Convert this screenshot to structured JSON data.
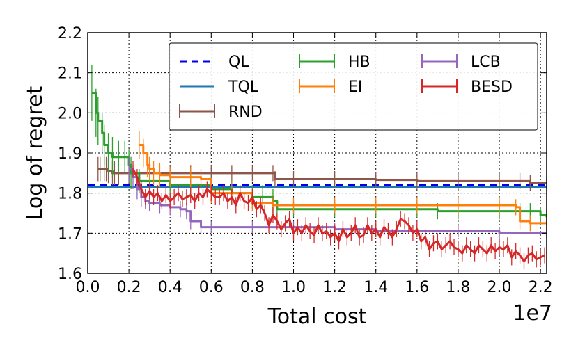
{
  "chart_data": {
    "type": "line",
    "title": "",
    "xlabel": "Total cost",
    "ylabel": "Log of regret",
    "x_offset_label": "1e7",
    "xlim": [
      0,
      2.23
    ],
    "ylim": [
      1.6,
      2.2
    ],
    "xticks": [
      "0.0",
      "0.2",
      "0.4",
      "0.6",
      "0.8",
      "1.0",
      "1.2",
      "1.4",
      "1.6",
      "1.8",
      "2.0",
      "2.2"
    ],
    "yticks": [
      "1.6",
      "1.7",
      "1.8",
      "1.9",
      "2.0",
      "2.1",
      "2.2"
    ],
    "grid": true,
    "legend_position": "top-right",
    "series": [
      {
        "name": "QL",
        "color": "#0000ee",
        "style": "dashed",
        "x": [
          0,
          2.23
        ],
        "y": [
          1.82,
          1.82
        ]
      },
      {
        "name": "TQL",
        "color": "#1f77b4",
        "style": "solid",
        "x": [
          0,
          2.23
        ],
        "y": [
          1.815,
          1.815
        ]
      },
      {
        "name": "RND",
        "color": "#8c564b",
        "style": "solid",
        "x": [
          0.05,
          0.06,
          0.08,
          0.09,
          0.1,
          0.12,
          0.13,
          0.15,
          0.2,
          0.3,
          0.4,
          0.5,
          0.6,
          0.7,
          0.8,
          0.9,
          0.91,
          1.0,
          1.2,
          1.4,
          1.6,
          1.8,
          2.0,
          2.1,
          2.15,
          2.23
        ],
        "y": [
          1.86,
          1.86,
          1.86,
          1.86,
          1.855,
          1.85,
          1.85,
          1.85,
          1.85,
          1.85,
          1.85,
          1.85,
          1.85,
          1.85,
          1.85,
          1.85,
          1.835,
          1.835,
          1.835,
          1.833,
          1.83,
          1.83,
          1.83,
          1.83,
          1.825,
          1.825
        ],
        "err": [
          0.03,
          0.03,
          0.03,
          0.03,
          0.03,
          0.03,
          0.03,
          0.03,
          0.025,
          0.025,
          0.02,
          0.02,
          0.02,
          0.02,
          0.02,
          0.02,
          0.02,
          0.02,
          0.02,
          0.02,
          0.02,
          0.02,
          0.02,
          0.02,
          0.02,
          0.02
        ]
      },
      {
        "name": "HB",
        "color": "#2ca02c",
        "style": "solid",
        "x": [
          0.02,
          0.04,
          0.05,
          0.07,
          0.08,
          0.1,
          0.12,
          0.15,
          0.18,
          0.2,
          0.21,
          0.25,
          0.3,
          0.4,
          0.5,
          0.6,
          0.7,
          0.8,
          0.85,
          0.9,
          0.92,
          1.0,
          1.2,
          1.4,
          1.6,
          1.7,
          1.8,
          2.0,
          2.1,
          2.15,
          2.2,
          2.23
        ],
        "y": [
          2.05,
          2.0,
          1.98,
          1.95,
          1.92,
          1.9,
          1.89,
          1.89,
          1.89,
          1.87,
          1.85,
          1.83,
          1.83,
          1.82,
          1.82,
          1.81,
          1.8,
          1.79,
          1.79,
          1.78,
          1.76,
          1.76,
          1.76,
          1.76,
          1.76,
          1.755,
          1.755,
          1.755,
          1.755,
          1.755,
          1.745,
          1.74
        ],
        "err": [
          0.07,
          0.06,
          0.06,
          0.05,
          0.05,
          0.05,
          0.05,
          0.04,
          0.04,
          0.04,
          0.04,
          0.03,
          0.03,
          0.03,
          0.03,
          0.03,
          0.03,
          0.03,
          0.03,
          0.03,
          0.02,
          0.02,
          0.02,
          0.02,
          0.02,
          0.02,
          0.02,
          0.02,
          0.02,
          0.02,
          0.02,
          0.02
        ]
      },
      {
        "name": "EI",
        "color": "#ff7f0e",
        "style": "solid",
        "x": [
          0.25,
          0.27,
          0.29,
          0.3,
          0.32,
          0.35,
          0.4,
          0.5,
          0.55,
          0.6,
          0.7,
          0.8,
          0.9,
          1.0,
          1.2,
          1.4,
          1.6,
          1.8,
          2.0,
          2.08,
          2.1,
          2.15,
          2.23
        ],
        "y": [
          1.92,
          1.9,
          1.87,
          1.86,
          1.85,
          1.845,
          1.84,
          1.84,
          1.835,
          1.8,
          1.8,
          1.775,
          1.77,
          1.77,
          1.77,
          1.77,
          1.77,
          1.77,
          1.77,
          1.765,
          1.73,
          1.725,
          1.725
        ],
        "err": [
          0.035,
          0.035,
          0.03,
          0.03,
          0.03,
          0.03,
          0.025,
          0.025,
          0.025,
          0.025,
          0.025,
          0.02,
          0.02,
          0.02,
          0.02,
          0.02,
          0.02,
          0.02,
          0.02,
          0.02,
          0.02,
          0.02,
          0.02
        ]
      },
      {
        "name": "LCB",
        "color": "#9467bd",
        "style": "solid",
        "x": [
          0.2,
          0.22,
          0.24,
          0.26,
          0.28,
          0.3,
          0.35,
          0.4,
          0.45,
          0.48,
          0.5,
          0.55,
          0.6,
          0.8,
          1.0,
          1.2,
          1.4,
          1.6,
          1.8,
          2.0,
          2.23
        ],
        "y": [
          1.86,
          1.84,
          1.81,
          1.79,
          1.78,
          1.775,
          1.77,
          1.765,
          1.76,
          1.755,
          1.73,
          1.715,
          1.715,
          1.715,
          1.715,
          1.71,
          1.705,
          1.705,
          1.705,
          1.7,
          1.7
        ],
        "err": [
          0.03,
          0.03,
          0.025,
          0.025,
          0.02,
          0.02,
          0.02,
          0.02,
          0.02,
          0.02,
          0.02,
          0.015,
          0.015,
          0.015,
          0.015,
          0.015,
          0.015,
          0.015,
          0.015,
          0.015,
          0.015
        ]
      },
      {
        "name": "BESD",
        "color": "#d62728",
        "style": "solid",
        "x": [
          0.22,
          0.24,
          0.26,
          0.28,
          0.3,
          0.32,
          0.34,
          0.36,
          0.38,
          0.4,
          0.42,
          0.44,
          0.46,
          0.48,
          0.5,
          0.52,
          0.54,
          0.56,
          0.58,
          0.6,
          0.62,
          0.64,
          0.66,
          0.68,
          0.7,
          0.72,
          0.74,
          0.76,
          0.78,
          0.8,
          0.82,
          0.84,
          0.86,
          0.88,
          0.9,
          0.92,
          0.94,
          0.96,
          0.98,
          1.0,
          1.02,
          1.04,
          1.06,
          1.08,
          1.1,
          1.12,
          1.14,
          1.16,
          1.18,
          1.2,
          1.22,
          1.24,
          1.26,
          1.28,
          1.3,
          1.32,
          1.34,
          1.36,
          1.38,
          1.4,
          1.42,
          1.44,
          1.46,
          1.48,
          1.5,
          1.52,
          1.54,
          1.56,
          1.58,
          1.6,
          1.62,
          1.64,
          1.66,
          1.68,
          1.7,
          1.72,
          1.74,
          1.76,
          1.78,
          1.8,
          1.82,
          1.84,
          1.86,
          1.88,
          1.9,
          1.92,
          1.94,
          1.96,
          1.98,
          2.0,
          2.02,
          2.04,
          2.06,
          2.08,
          2.1,
          2.12,
          2.14,
          2.16,
          2.18,
          2.2,
          2.22
        ],
        "y": [
          1.86,
          1.84,
          1.81,
          1.79,
          1.805,
          1.79,
          1.8,
          1.78,
          1.795,
          1.78,
          1.79,
          1.8,
          1.785,
          1.79,
          1.795,
          1.78,
          1.8,
          1.79,
          1.81,
          1.8,
          1.79,
          1.79,
          1.8,
          1.78,
          1.79,
          1.77,
          1.8,
          1.78,
          1.775,
          1.79,
          1.76,
          1.77,
          1.75,
          1.72,
          1.745,
          1.73,
          1.71,
          1.725,
          1.735,
          1.7,
          1.715,
          1.7,
          1.72,
          1.705,
          1.695,
          1.72,
          1.7,
          1.705,
          1.69,
          1.7,
          1.68,
          1.71,
          1.69,
          1.7,
          1.72,
          1.69,
          1.695,
          1.72,
          1.7,
          1.71,
          1.69,
          1.715,
          1.705,
          1.69,
          1.71,
          1.735,
          1.73,
          1.72,
          1.7,
          1.71,
          1.68,
          1.69,
          1.66,
          1.675,
          1.68,
          1.66,
          1.67,
          1.68,
          1.665,
          1.66,
          1.65,
          1.67,
          1.66,
          1.65,
          1.67,
          1.66,
          1.65,
          1.67,
          1.655,
          1.665,
          1.66,
          1.67,
          1.64,
          1.655,
          1.645,
          1.63,
          1.645,
          1.65,
          1.635,
          1.64,
          1.645
        ],
        "err": [
          0.02,
          0.02,
          0.02,
          0.02,
          0.02,
          0.02,
          0.02,
          0.02,
          0.02,
          0.02,
          0.02,
          0.02,
          0.02,
          0.02,
          0.02,
          0.02,
          0.02,
          0.02,
          0.02,
          0.02,
          0.02,
          0.02,
          0.02,
          0.02,
          0.02,
          0.02,
          0.02,
          0.02,
          0.02,
          0.02,
          0.02,
          0.02,
          0.02,
          0.02,
          0.02,
          0.02,
          0.02,
          0.02,
          0.02,
          0.02,
          0.02,
          0.02,
          0.02,
          0.02,
          0.02,
          0.02,
          0.02,
          0.02,
          0.02,
          0.02,
          0.02,
          0.02,
          0.02,
          0.02,
          0.02,
          0.02,
          0.02,
          0.02,
          0.02,
          0.02,
          0.02,
          0.02,
          0.02,
          0.02,
          0.02,
          0.02,
          0.02,
          0.02,
          0.02,
          0.02,
          0.02,
          0.02,
          0.02,
          0.02,
          0.02,
          0.02,
          0.02,
          0.02,
          0.02,
          0.02,
          0.02,
          0.02,
          0.02,
          0.02,
          0.02,
          0.02,
          0.02,
          0.02,
          0.02,
          0.02,
          0.02,
          0.02,
          0.02,
          0.02,
          0.02,
          0.02,
          0.02,
          0.02,
          0.02,
          0.02,
          0.02
        ]
      }
    ]
  }
}
